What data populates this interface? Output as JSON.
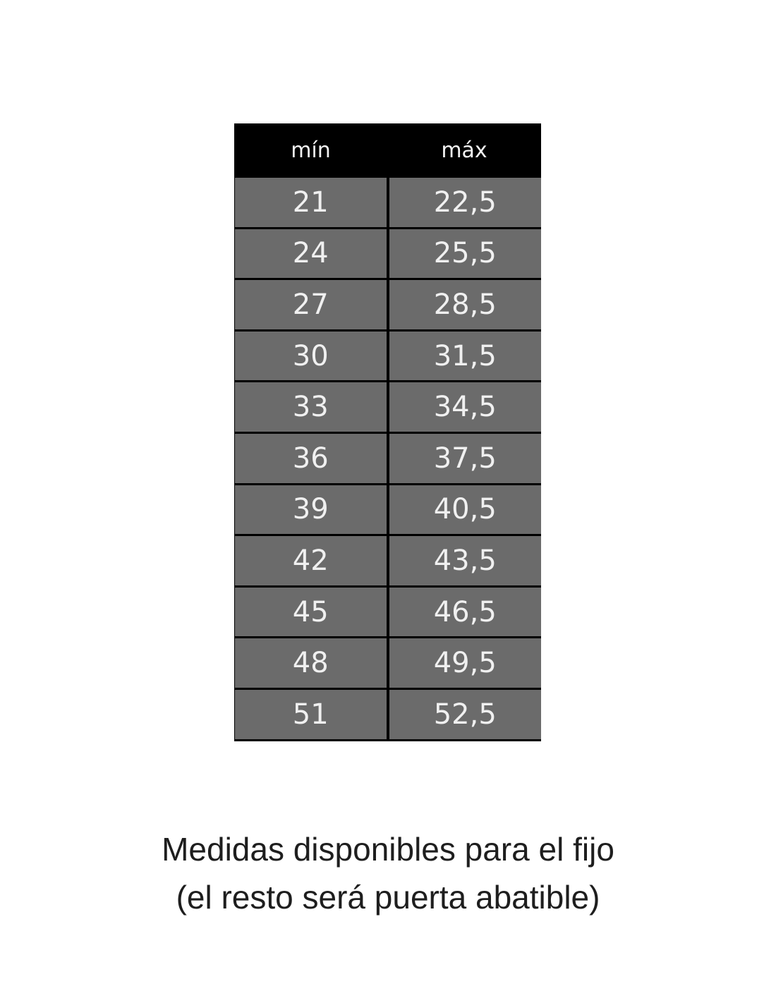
{
  "table": {
    "headers": [
      "mín",
      "máx"
    ],
    "rows": [
      [
        "21",
        "22,5"
      ],
      [
        "24",
        "25,5"
      ],
      [
        "27",
        "28,5"
      ],
      [
        "30",
        "31,5"
      ],
      [
        "33",
        "34,5"
      ],
      [
        "36",
        "37,5"
      ],
      [
        "39",
        "40,5"
      ],
      [
        "42",
        "43,5"
      ],
      [
        "45",
        "46,5"
      ],
      [
        "48",
        "49,5"
      ],
      [
        "51",
        "52,5"
      ]
    ]
  },
  "caption": {
    "line1": "Medidas disponibles para el fijo",
    "line2": "(el resto será puerta abatible)"
  },
  "colors": {
    "header_bg": "#000000",
    "cell_bg": "#6b6b6b",
    "cell_text": "#f0f0f0"
  }
}
